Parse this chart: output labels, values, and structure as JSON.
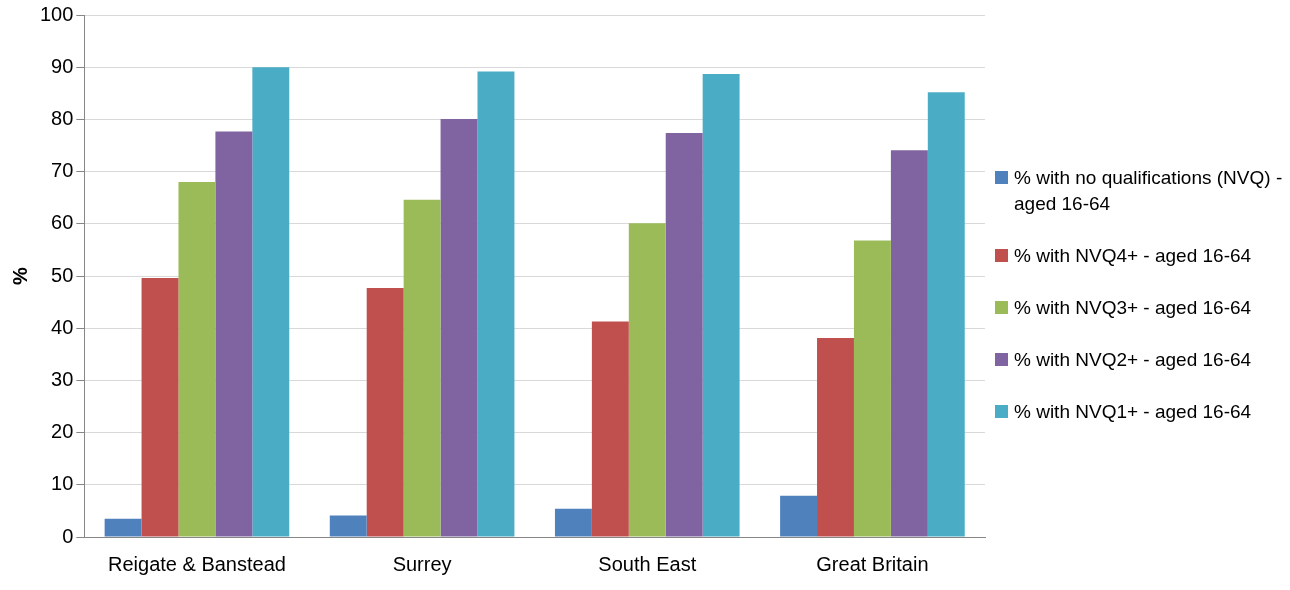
{
  "chart_data": {
    "type": "bar",
    "ylabel": "%",
    "categories": [
      "Reigate & Banstead",
      "Surrey",
      "South East",
      "Great Britain"
    ],
    "series": [
      {
        "name": "% with no qualifications (NVQ) - aged 16-64",
        "color": "#4f81bd",
        "values": [
          3.5,
          4.1,
          5.4,
          7.9
        ]
      },
      {
        "name": "% with NVQ4+ - aged 16-64",
        "color": "#c0504d",
        "values": [
          49.6,
          47.7,
          41.3,
          38.1
        ]
      },
      {
        "name": "% with NVQ3+ - aged 16-64",
        "color": "#9bbb59",
        "values": [
          68.0,
          64.6,
          60.1,
          56.8
        ]
      },
      {
        "name": "% with NVQ2+ - aged 16-64",
        "color": "#8064a2",
        "values": [
          77.7,
          80.1,
          77.4,
          74.1
        ]
      },
      {
        "name": "% with NVQ1+ - aged 16-64",
        "color": "#4bacc6",
        "values": [
          90.0,
          89.2,
          88.7,
          85.2
        ]
      }
    ],
    "ylim": [
      0,
      100
    ],
    "yticks": [
      0,
      10,
      20,
      30,
      40,
      50,
      60,
      70,
      80,
      90,
      100
    ],
    "grid": "y",
    "legend": "right"
  }
}
